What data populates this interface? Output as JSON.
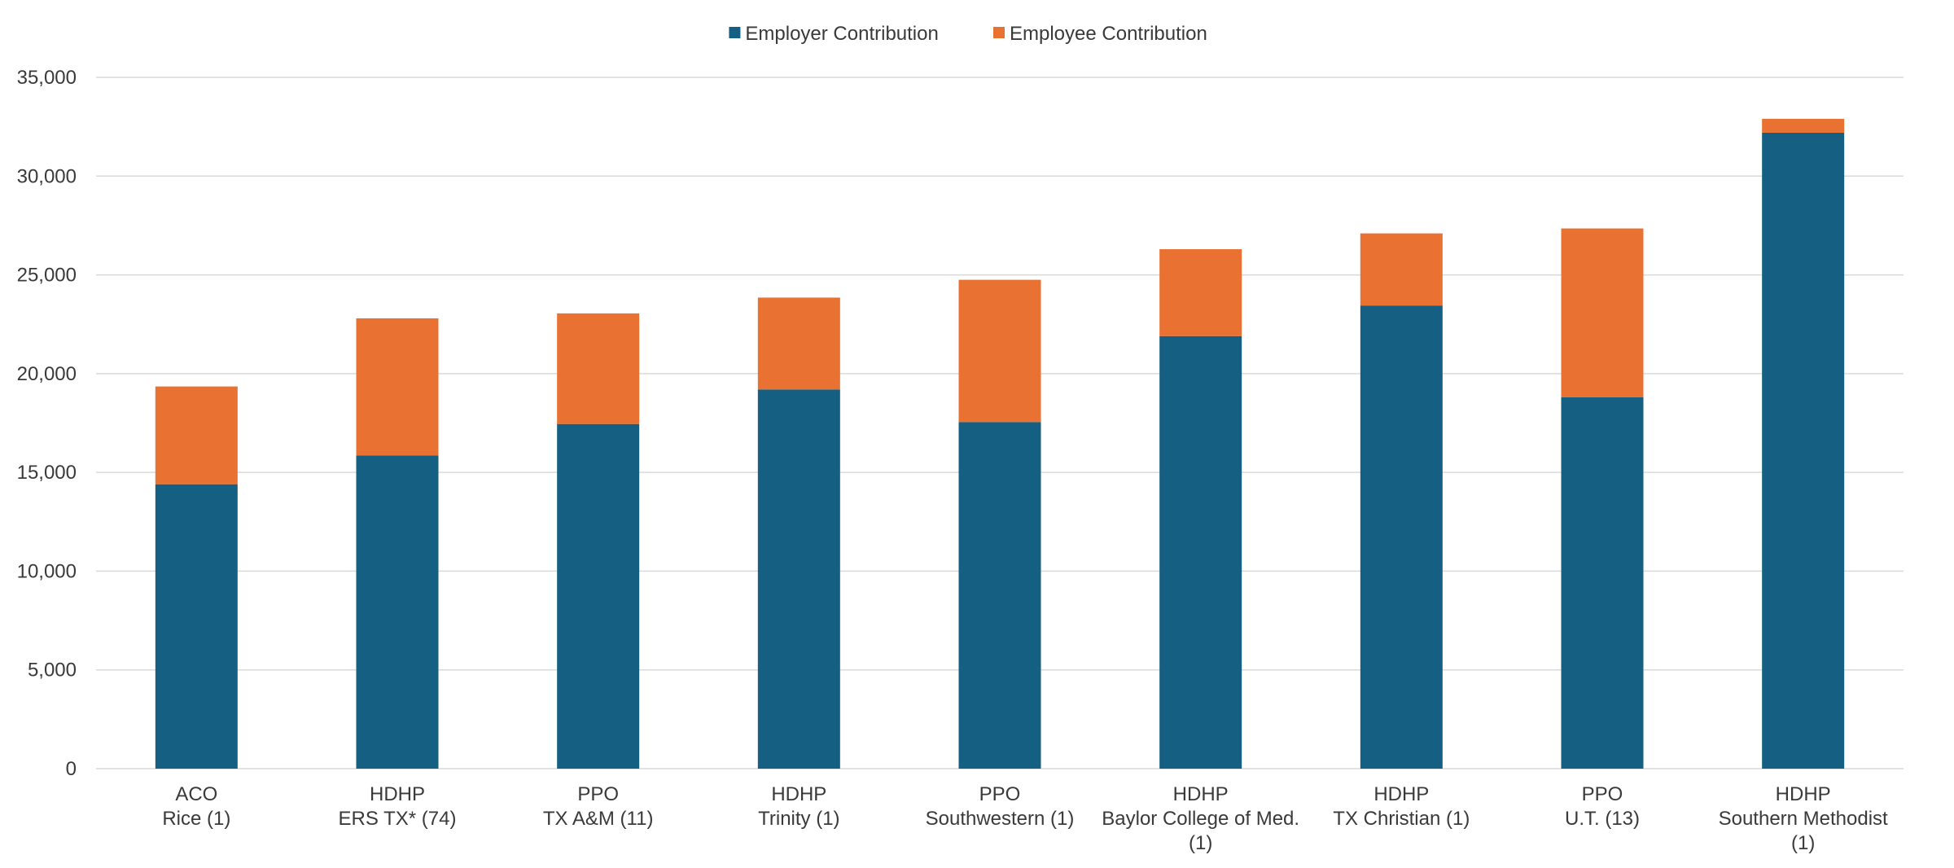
{
  "chart_data": {
    "type": "bar",
    "stacked": true,
    "categories": [
      [
        "ACO",
        "Rice (1)"
      ],
      [
        "HDHP",
        "ERS TX*  (74)"
      ],
      [
        "PPO",
        "TX A&M (11)"
      ],
      [
        "HDHP",
        "Trinity (1)"
      ],
      [
        "PPO",
        "Southwestern (1)"
      ],
      [
        "HDHP",
        "Baylor College of Med.",
        "(1)"
      ],
      [
        "HDHP",
        "TX Christian (1)"
      ],
      [
        "PPO",
        "U.T. (13)"
      ],
      [
        "HDHP",
        "Southern Methodist",
        "(1)"
      ]
    ],
    "series": [
      {
        "name": "Employer Contribution",
        "color": "#156082",
        "values": [
          14400,
          15850,
          17450,
          19200,
          17550,
          21900,
          23450,
          18800,
          32200
        ]
      },
      {
        "name": "Employee Contribution",
        "color": "#E97132",
        "values": [
          4950,
          6950,
          5600,
          4650,
          7200,
          4400,
          3650,
          8550,
          700
        ]
      }
    ],
    "y_ticks": [
      "0",
      "5,000",
      "10,000",
      "15,000",
      "20,000",
      "25,000",
      "30,000",
      "35,000"
    ],
    "ylim": [
      0,
      35000
    ],
    "legend_position": "top-center",
    "grid": true,
    "gridline_color": "#d9d9d9"
  }
}
